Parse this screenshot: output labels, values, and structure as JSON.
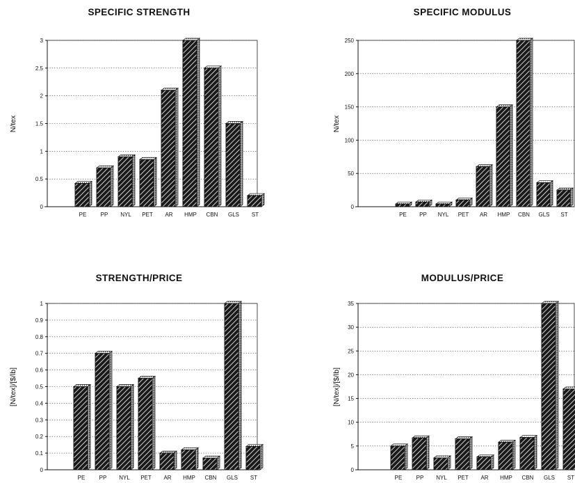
{
  "chart_data": [
    {
      "type": "bar",
      "title": "SPECIFIC STRENGTH",
      "ylabel": "N/tex",
      "xlabel": "",
      "categories": [
        "PE",
        "PP",
        "NYL",
        "PET",
        "AR",
        "HMP",
        "CBN",
        "GLS",
        "ST"
      ],
      "values": [
        0.42,
        0.7,
        0.9,
        0.85,
        2.1,
        3.0,
        2.5,
        1.5,
        0.2
      ],
      "ylim": [
        0,
        3
      ],
      "yticks": [
        "0",
        "0.5",
        "1",
        "1.5",
        "2",
        "2.5",
        "3"
      ],
      "grid": true
    },
    {
      "type": "bar",
      "title": "SPECIFIC MODULUS",
      "ylabel": "N/tex",
      "xlabel": "",
      "categories": [
        "PE",
        "PP",
        "NYL",
        "PET",
        "AR",
        "HMP",
        "CBN",
        "GLS",
        "ST"
      ],
      "values": [
        4,
        7,
        4,
        10,
        60,
        150,
        250,
        36,
        25
      ],
      "ylim": [
        0,
        250
      ],
      "yticks": [
        "0",
        "50",
        "100",
        "150",
        "200",
        "250"
      ],
      "grid": true
    },
    {
      "type": "bar",
      "title": "STRENGTH/PRICE",
      "ylabel": "[N/tex]/[$/lb]",
      "xlabel": "",
      "categories": [
        "PE",
        "PP",
        "NYL",
        "PET",
        "AR",
        "HMP",
        "CBN",
        "GLS",
        "ST"
      ],
      "values": [
        0.5,
        0.7,
        0.5,
        0.55,
        0.1,
        0.12,
        0.07,
        1.0,
        0.14
      ],
      "ylim": [
        0,
        1
      ],
      "yticks": [
        "0",
        "0.1",
        "0.2",
        "0.3",
        "0.4",
        "0.5",
        "0.6",
        "0.7",
        "0.8",
        "0.9",
        "1"
      ],
      "grid": true
    },
    {
      "type": "bar",
      "title": "MODULUS/PRICE",
      "ylabel": "[N/tex]/[$/lb]",
      "xlabel": "",
      "categories": [
        "PE",
        "PP",
        "NYL",
        "PET",
        "AR",
        "HMP",
        "CBN",
        "GLS",
        "ST"
      ],
      "values": [
        5,
        6.7,
        2.5,
        6.5,
        2.7,
        5.8,
        6.8,
        35,
        17
      ],
      "ylim": [
        0,
        35
      ],
      "yticks": [
        "0",
        "5",
        "10",
        "15",
        "20",
        "25",
        "30",
        "35"
      ],
      "grid": true
    }
  ]
}
